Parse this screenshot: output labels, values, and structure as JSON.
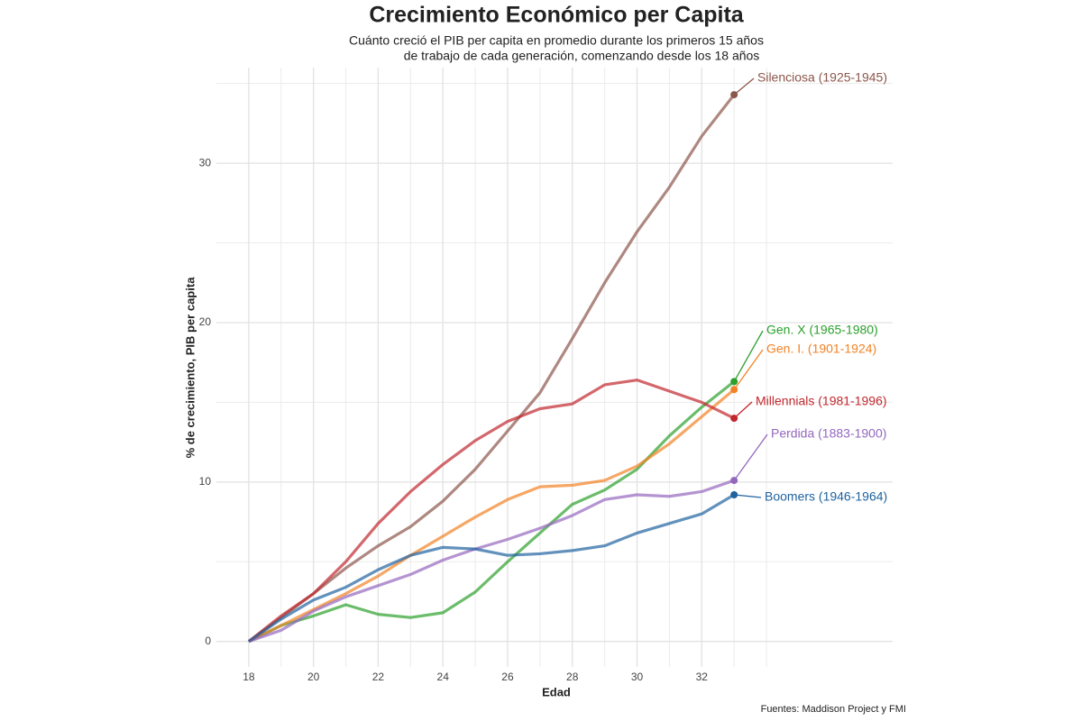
{
  "chart_data": {
    "type": "line",
    "title": "Crecimiento Económico per Capita",
    "subtitle": [
      "Cuánto creció el PIB per capita en promedio durante los primeros 15 años",
      "de trabajo de cada generación, comenzando desde los 18 años"
    ],
    "x_label": "Edad",
    "y_label": "% de crecimiento, PIB per capita",
    "source": "Fuentes: Maddison Project y FMI",
    "x": [
      18,
      19,
      20,
      21,
      22,
      23,
      24,
      25,
      26,
      27,
      28,
      29,
      30,
      31,
      32,
      33
    ],
    "series": [
      {
        "name": "Silenciosa (1925-1945)",
        "color": "#8c564b",
        "values": [
          0,
          1.5,
          3.0,
          4.6,
          6.0,
          7.2,
          8.8,
          10.8,
          13.2,
          15.6,
          19.0,
          22.5,
          25.7,
          28.5,
          31.7,
          34.3
        ]
      },
      {
        "name": "Gen. X (1965-1980)",
        "color": "#2ca02c",
        "values": [
          0,
          1.0,
          1.6,
          2.3,
          1.7,
          1.5,
          1.8,
          3.1,
          5.0,
          6.8,
          8.6,
          9.5,
          10.8,
          12.9,
          14.7,
          16.3
        ]
      },
      {
        "name": "Gen. I. (1901-1924)",
        "color": "#f28224",
        "values": [
          0,
          1.0,
          2.0,
          3.0,
          4.1,
          5.4,
          6.6,
          7.8,
          8.9,
          9.7,
          9.8,
          10.1,
          11.0,
          12.4,
          14.1,
          15.8
        ]
      },
      {
        "name": "Millennials (1981-1996)",
        "color": "#c1272d",
        "values": [
          0,
          1.6,
          3.0,
          5.0,
          7.4,
          9.4,
          11.1,
          12.6,
          13.8,
          14.6,
          14.9,
          16.1,
          16.4,
          15.7,
          15.0,
          14.0
        ]
      },
      {
        "name": "Perdida (1883-1900)",
        "color": "#9467bd",
        "values": [
          0,
          0.7,
          1.9,
          2.8,
          3.5,
          4.2,
          5.1,
          5.8,
          6.4,
          7.1,
          7.9,
          8.9,
          9.2,
          9.1,
          9.4,
          10.1
        ]
      },
      {
        "name": "Boomers (1946-1964)",
        "color": "#1f62a0",
        "values": [
          0,
          1.4,
          2.6,
          3.4,
          4.5,
          5.4,
          5.9,
          5.8,
          5.4,
          5.5,
          5.7,
          6.0,
          6.8,
          7.4,
          8.0,
          9.2
        ]
      }
    ],
    "xlim": [
      17,
      37.9
    ],
    "ylim": [
      -1.6,
      36
    ],
    "xticks": [
      18,
      20,
      22,
      24,
      26,
      28,
      30,
      32
    ],
    "x_minor_grid": [
      19,
      21,
      23,
      25,
      27,
      29,
      31,
      33,
      34
    ],
    "yticks": [
      0,
      10,
      20,
      30
    ],
    "y_minor_grid": [
      5,
      15,
      25,
      35
    ],
    "grid": true
  }
}
